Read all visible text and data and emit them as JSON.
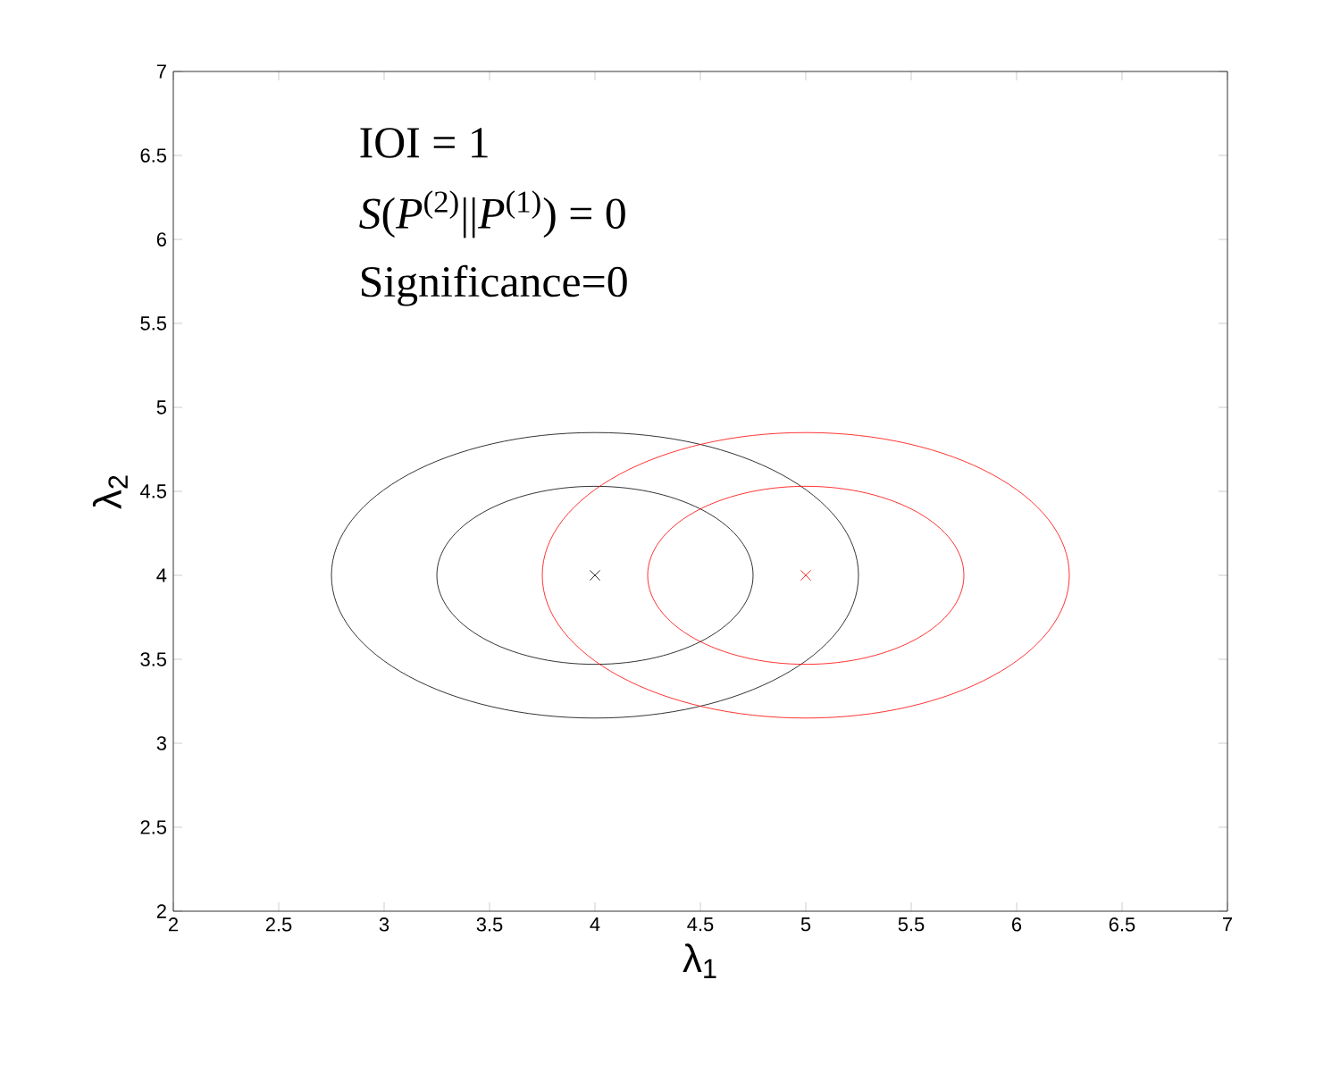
{
  "chart_data": {
    "type": "scatter",
    "xlabel": "λ$_{1}$",
    "ylabel": "λ$_{2}$",
    "xlim": [
      2,
      7
    ],
    "ylim": [
      2,
      7
    ],
    "xticks": [
      2,
      2.5,
      3,
      3.5,
      4,
      4.5,
      5,
      5.5,
      6,
      6.5,
      7
    ],
    "yticks": [
      2,
      2.5,
      3,
      3.5,
      4,
      4.5,
      5,
      5.5,
      6,
      6.5,
      7
    ],
    "grid": false,
    "marker": "cross",
    "annotations": [
      "IOI = 1",
      "*S*(*P*$^{(2)}$||*P*$^{(1)}$) = 0",
      "Significance=0"
    ],
    "series": [
      {
        "color": "#000000",
        "x": [
          4
        ],
        "values": [
          4
        ]
      },
      {
        "color": "#ff0000",
        "x": [
          5
        ],
        "values": [
          4
        ]
      }
    ]
  }
}
